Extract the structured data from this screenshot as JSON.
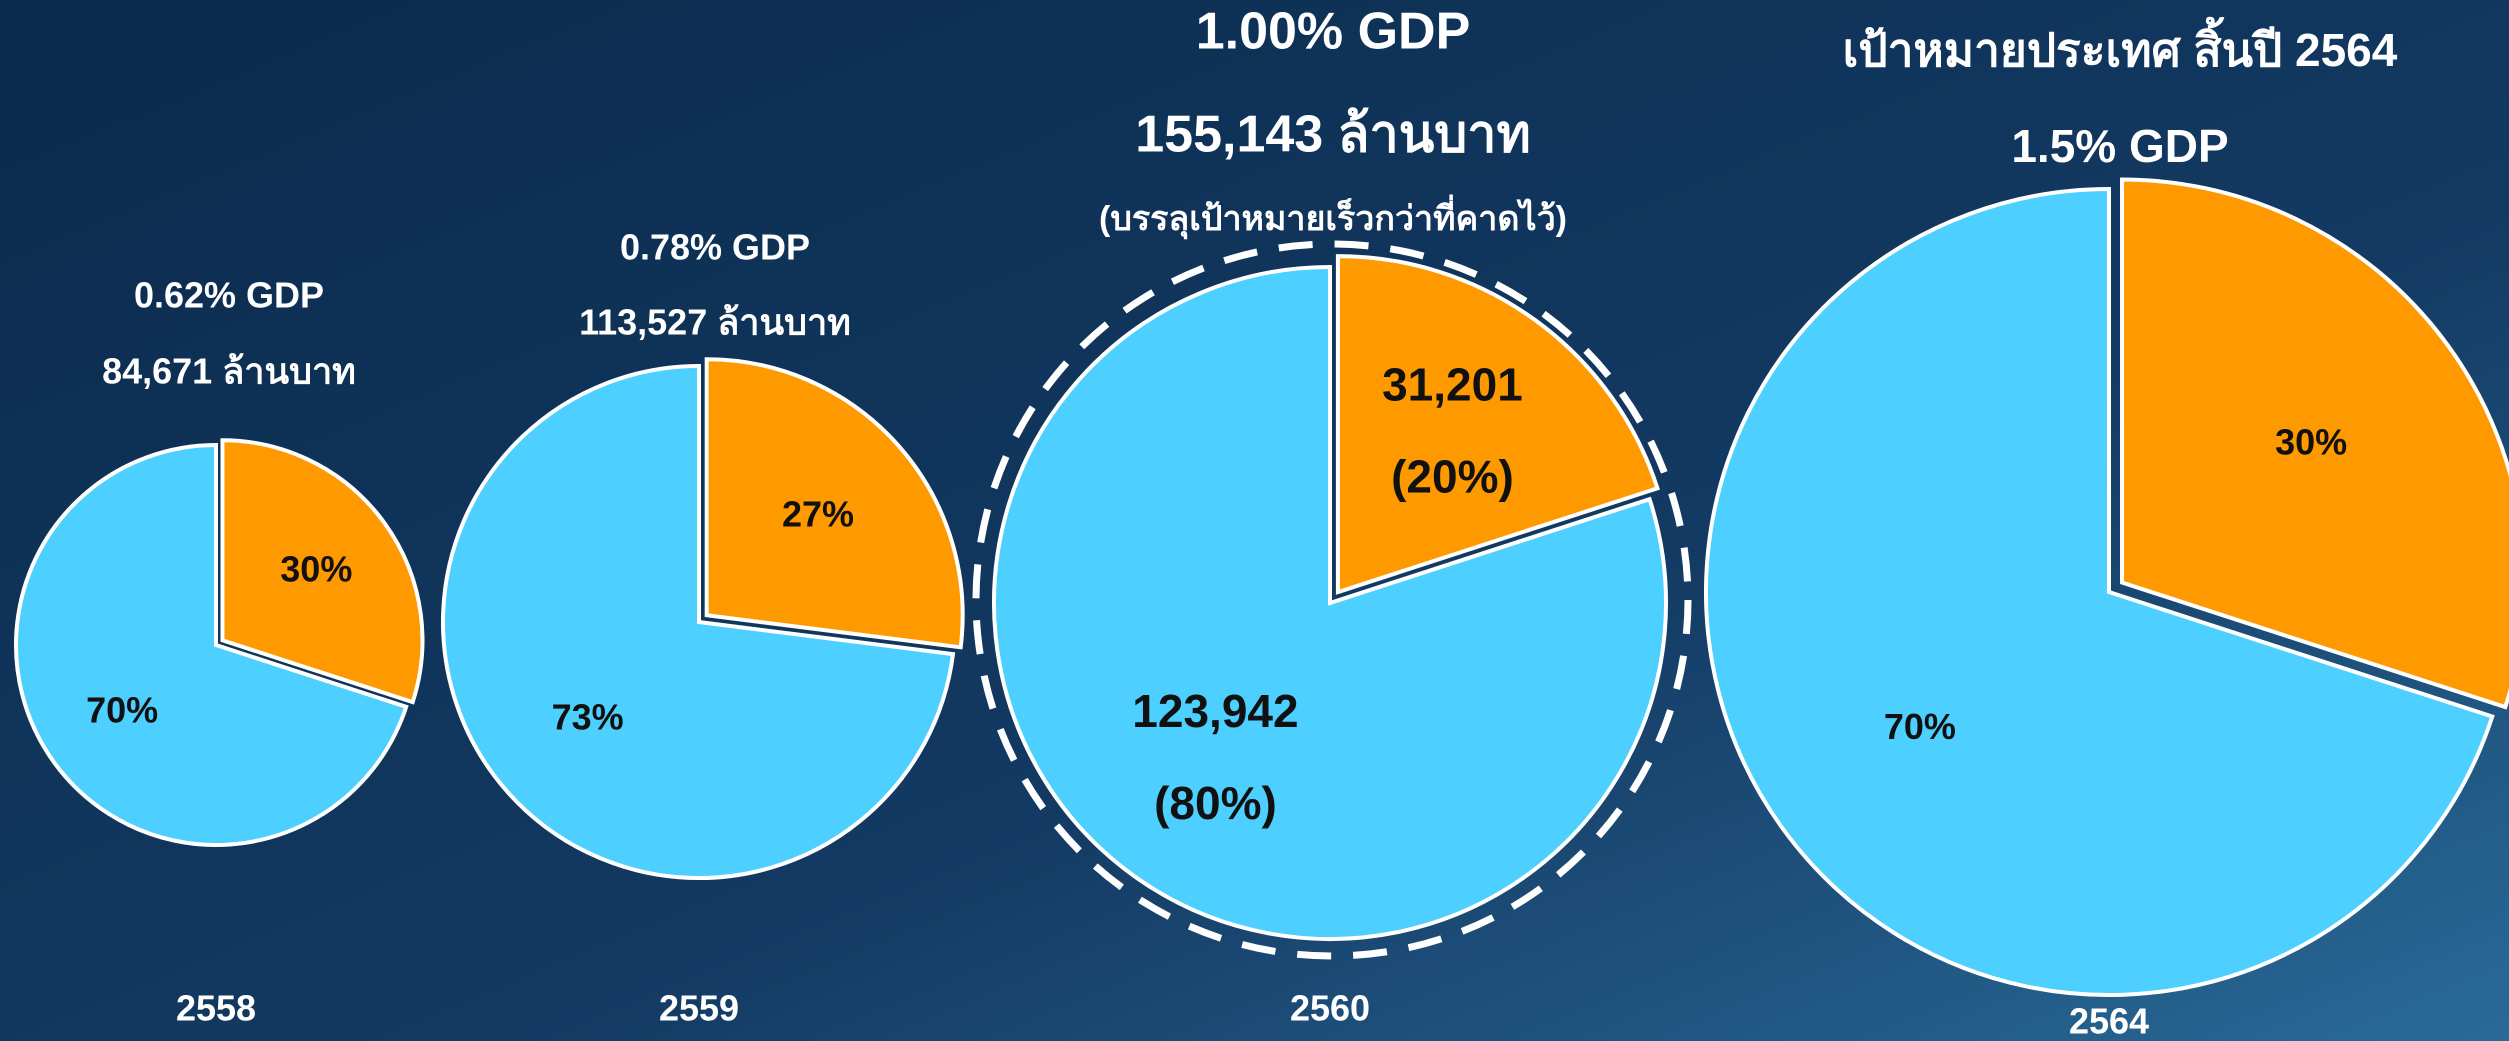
{
  "chart_data": [
    {
      "type": "pie",
      "title": "0.62% GDP",
      "subtitle": "84,671 ล้านบาท",
      "label": "2558",
      "values": [
        30,
        70
      ],
      "value_labels": [
        "30%",
        "70%"
      ],
      "colors": [
        "#ff9900",
        "#4dcfff"
      ]
    },
    {
      "type": "pie",
      "title": "0.78% GDP",
      "subtitle": "113,527 ล้านบาท",
      "label": "2559",
      "values": [
        27,
        73
      ],
      "value_labels": [
        "27%",
        "73%"
      ],
      "colors": [
        "#ff9900",
        "#4dcfff"
      ]
    },
    {
      "type": "pie",
      "title": "1.00% GDP",
      "subtitle": "155,143 ล้านบาท",
      "annotation": "(บรรลุเป้าหมายเร็วกว่าที่คาดไว้)",
      "label": "2560",
      "values": [
        20,
        80
      ],
      "value_labels": [
        "(20%)",
        "(80%)"
      ],
      "amounts": [
        31201,
        123942
      ],
      "amount_labels": [
        "31,201",
        "123,942"
      ],
      "colors": [
        "#ff9900",
        "#4dcfff"
      ]
    },
    {
      "type": "pie",
      "title": "เป้าหมายประเทศ สิ้นปี 2564",
      "subtitle": "1.5% GDP",
      "label": "2564",
      "values": [
        30,
        70
      ],
      "value_labels": [
        "30%",
        "70%"
      ],
      "colors": [
        "#ff9900",
        "#4dcfff"
      ]
    }
  ]
}
